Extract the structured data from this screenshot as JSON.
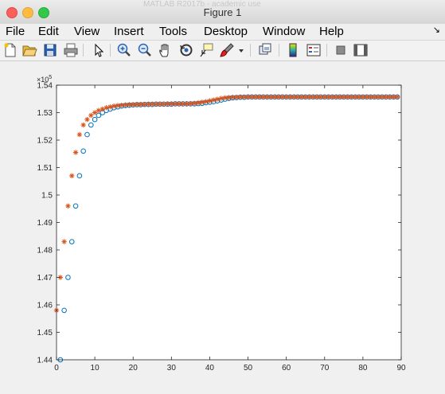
{
  "window": {
    "title": "Figure 1",
    "ghost_title": "MATLAB R2017b - academic use"
  },
  "menu": [
    "File",
    "Edit",
    "View",
    "Insert",
    "Tools",
    "Desktop",
    "Window",
    "Help"
  ],
  "toolbar_icons": [
    "new-figure-icon",
    "open-icon",
    "save-icon",
    "print-icon",
    "pointer-icon",
    "zoom-in-icon",
    "zoom-out-icon",
    "pan-icon",
    "rotate-icon",
    "data-cursor-icon",
    "brush-icon",
    "dropdown-icon",
    "link-plot-icon",
    "colorbar-icon",
    "legend-icon",
    "hide-plot-tools-icon",
    "show-plot-tools-icon"
  ],
  "colors": {
    "series_circle": "#0072bd",
    "series_star": "#d95319",
    "axes": "#262626",
    "grid_bg": "#ffffff"
  },
  "chart_data": {
    "type": "scatter",
    "xlim": [
      0,
      90
    ],
    "ylim": [
      1.44,
      1.54
    ],
    "y_exponent_label": "×10",
    "y_exponent_power": "5",
    "xticks": [
      "0",
      "10",
      "20",
      "30",
      "40",
      "50",
      "60",
      "70",
      "80",
      "90"
    ],
    "yticks": [
      "1.44",
      "1.45",
      "1.46",
      "1.47",
      "1.48",
      "1.49",
      "1.5",
      "1.51",
      "1.52",
      "1.53",
      "1.54"
    ],
    "series": [
      {
        "marker": "circle",
        "x": [
          1,
          2,
          3,
          4,
          5,
          6,
          7,
          8,
          9,
          10,
          11,
          12,
          13,
          14,
          15,
          16,
          17,
          18,
          19,
          20,
          21,
          22,
          23,
          24,
          25,
          26,
          27,
          28,
          29,
          30,
          31,
          32,
          33,
          34,
          35,
          36,
          37,
          38,
          39,
          40,
          41,
          42,
          43,
          44,
          45,
          46,
          47,
          48,
          49,
          50,
          51,
          52,
          53,
          54,
          55,
          56,
          57,
          58,
          59,
          60,
          61,
          62,
          63,
          64,
          65,
          66,
          67,
          68,
          69,
          70,
          71,
          72,
          73,
          74,
          75,
          76,
          77,
          78,
          79,
          80,
          81,
          82,
          83,
          84,
          85,
          86,
          87,
          88,
          89
        ],
        "y": [
          1.44,
          1.458,
          1.47,
          1.483,
          1.496,
          1.507,
          1.516,
          1.522,
          1.5255,
          1.5275,
          1.529,
          1.53,
          1.5308,
          1.5313,
          1.5318,
          1.5321,
          1.5324,
          1.5326,
          1.5327,
          1.5328,
          1.5329,
          1.5329,
          1.533,
          1.533,
          1.533,
          1.5331,
          1.5331,
          1.5331,
          1.5331,
          1.5331,
          1.5332,
          1.5332,
          1.5332,
          1.5332,
          1.5332,
          1.5332,
          1.5333,
          1.5334,
          1.5336,
          1.5338,
          1.534,
          1.5343,
          1.5346,
          1.5349,
          1.5352,
          1.5354,
          1.5355,
          1.5356,
          1.5356,
          1.5357,
          1.5357,
          1.5357,
          1.5357,
          1.5357,
          1.5357,
          1.5357,
          1.5357,
          1.5357,
          1.5357,
          1.5357,
          1.5357,
          1.5357,
          1.5357,
          1.5357,
          1.5357,
          1.5357,
          1.5357,
          1.5357,
          1.5357,
          1.5357,
          1.5357,
          1.5357,
          1.5357,
          1.5357,
          1.5357,
          1.5357,
          1.5357,
          1.5357,
          1.5357,
          1.5357,
          1.5357,
          1.5357,
          1.5357,
          1.5357,
          1.5357,
          1.5357,
          1.5357,
          1.5357,
          1.5357
        ]
      },
      {
        "marker": "star",
        "x": [
          0,
          1,
          2,
          3,
          4,
          5,
          6,
          7,
          8,
          9,
          10,
          11,
          12,
          13,
          14,
          15,
          16,
          17,
          18,
          19,
          20,
          21,
          22,
          23,
          24,
          25,
          26,
          27,
          28,
          29,
          30,
          31,
          32,
          33,
          34,
          35,
          36,
          37,
          38,
          39,
          40,
          41,
          42,
          43,
          44,
          45,
          46,
          47,
          48,
          49,
          50,
          51,
          52,
          53,
          54,
          55,
          56,
          57,
          58,
          59,
          60,
          61,
          62,
          63,
          64,
          65,
          66,
          67,
          68,
          69,
          70,
          71,
          72,
          73,
          74,
          75,
          76,
          77,
          78,
          79,
          80,
          81,
          82,
          83,
          84,
          85,
          86,
          87,
          88,
          89
        ],
        "y": [
          1.458,
          1.47,
          1.483,
          1.496,
          1.507,
          1.5155,
          1.522,
          1.5255,
          1.5275,
          1.529,
          1.53,
          1.5308,
          1.5313,
          1.5318,
          1.5321,
          1.5324,
          1.5326,
          1.5327,
          1.5328,
          1.5329,
          1.5329,
          1.533,
          1.533,
          1.533,
          1.5331,
          1.5331,
          1.5331,
          1.5331,
          1.5331,
          1.5332,
          1.5332,
          1.5332,
          1.5332,
          1.5332,
          1.5332,
          1.5333,
          1.5334,
          1.5336,
          1.5338,
          1.534,
          1.5343,
          1.5346,
          1.5349,
          1.5352,
          1.5354,
          1.5355,
          1.5356,
          1.5356,
          1.5357,
          1.5357,
          1.5357,
          1.5357,
          1.5357,
          1.5357,
          1.5357,
          1.5357,
          1.5357,
          1.5357,
          1.5357,
          1.5357,
          1.5357,
          1.5357,
          1.5357,
          1.5357,
          1.5357,
          1.5357,
          1.5357,
          1.5357,
          1.5357,
          1.5357,
          1.5357,
          1.5357,
          1.5357,
          1.5357,
          1.5357,
          1.5357,
          1.5357,
          1.5357,
          1.5357,
          1.5357,
          1.5357,
          1.5357,
          1.5357,
          1.5357,
          1.5357,
          1.5357,
          1.5357,
          1.5357,
          1.5357,
          1.5357
        ]
      }
    ]
  }
}
